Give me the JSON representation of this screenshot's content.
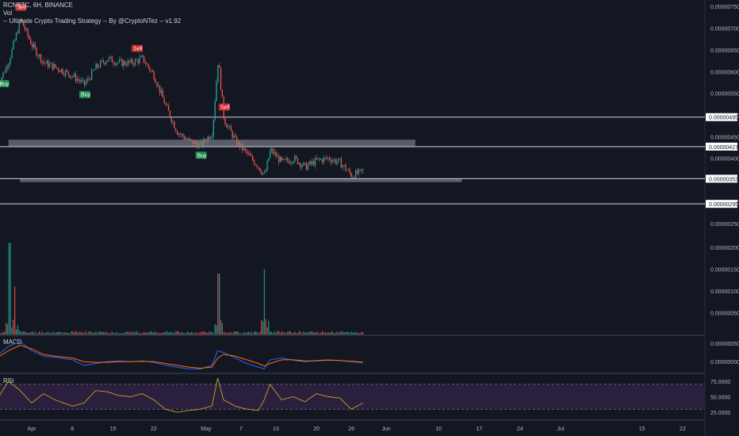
{
  "header": {
    "symbol_line": "RCNBTC, 6H, BINANCE",
    "vol_label": "Vol",
    "strategy_label": "-- Ultimate Crypto Trading Strategy -- By @CryptoNTez -- v1.92"
  },
  "colors": {
    "background": "#131722",
    "up": "#26a69a",
    "down": "#ef5350",
    "macd": "#2962ff",
    "signal": "#ff6d00",
    "rsi": "#c9a227",
    "rsi_band": "#2a1f3d",
    "buy": "#1e8e4e",
    "sell": "#c62828",
    "zone": "#9598a1"
  },
  "chart_data": [
    {
      "type": "candlestick",
      "title": "RCNBTC, 6H, BINANCE",
      "x_tick_labels": [
        "Apr",
        "8",
        "15",
        "22",
        "May",
        "7",
        "13",
        "20",
        "26",
        "Jun",
        "10",
        "17",
        "24",
        "Jul",
        "15",
        "22"
      ],
      "y_tick_labels": [
        "0.00000750",
        "0.00000700",
        "0.00000650",
        "0.00000600",
        "0.00000550",
        "0.00000500",
        "0.00000450",
        "0.00000400",
        "0.00000300",
        "0.00000250"
      ],
      "ylim": [
        2.35e-06,
        7.65e-06
      ],
      "horizontal_levels": [
        {
          "label": "0.00000495",
          "value": 4.95e-06
        },
        {
          "label": "0.00000427",
          "value": 4.27e-06
        },
        {
          "label": "0.00000353",
          "value": 3.53e-06
        },
        {
          "label": "0.00000295",
          "value": 2.95e-06
        }
      ],
      "zones": [
        {
          "low": 4.27e-06,
          "high": 4.43e-06,
          "from": "Mar 28",
          "to": "Jun 6"
        },
        {
          "low": 3.45e-06,
          "high": 3.53e-06,
          "from": "Mar 30",
          "to": "Jun 14"
        }
      ],
      "signals": [
        {
          "label": "Buy",
          "date": "Mar 27",
          "side": "buy"
        },
        {
          "label": "Sell",
          "date": "Mar 30",
          "side": "sell"
        },
        {
          "label": "Buy",
          "date": "Apr 10",
          "side": "buy"
        },
        {
          "label": "Sell",
          "date": "Apr 19",
          "side": "sell"
        },
        {
          "label": "Buy",
          "date": "Apr 30",
          "side": "buy"
        },
        {
          "label": "Sell",
          "date": "May 4",
          "side": "sell"
        }
      ],
      "close_series": {
        "dates": [
          "Mar 26",
          "Mar 28",
          "Mar 30",
          "Apr 1",
          "Apr 3",
          "Apr 5",
          "Apr 8",
          "Apr 10",
          "Apr 12",
          "Apr 14",
          "Apr 16",
          "Apr 18",
          "Apr 20",
          "Apr 22",
          "Apr 24",
          "Apr 26",
          "Apr 28",
          "Apr 30",
          "May 2",
          "May 3",
          "May 4",
          "May 6",
          "May 8",
          "May 10",
          "May 11",
          "May 12",
          "May 14",
          "May 16",
          "May 18",
          "May 20",
          "May 22",
          "May 24",
          "May 26",
          "May 28"
        ],
        "values": [
          5.65e-06,
          6.25e-06,
          7.2e-06,
          6.6e-06,
          6.2e-06,
          6.1e-06,
          5.9e-06,
          5.7e-06,
          6.1e-06,
          6.3e-06,
          6.2e-06,
          6.2e-06,
          6.3e-06,
          5.9e-06,
          5.2e-06,
          4.6e-06,
          4.4e-06,
          4.3e-06,
          4.6e-06,
          6.3e-06,
          4.9e-06,
          4.4e-06,
          4.1e-06,
          3.8e-06,
          3.6e-06,
          4.2e-06,
          3.9e-06,
          4e-06,
          3.8e-06,
          3.95e-06,
          4e-06,
          3.9e-06,
          3.6e-06,
          3.7e-06
        ]
      }
    },
    {
      "type": "bar",
      "title": "Vol",
      "y_tick_labels": [
        "0.00000200",
        "0.00000150",
        "0.00000100",
        "0.00000050"
      ],
      "ylim": [
        0,
        2.4e-06
      ],
      "spikes": [
        {
          "date": "Mar 28",
          "value": 2.1e-06
        },
        {
          "date": "Mar 29",
          "value": 1.1e-06
        },
        {
          "date": "May 3",
          "value": 1.4e-06
        },
        {
          "date": "May 11",
          "value": 1.5e-06
        }
      ]
    },
    {
      "type": "line",
      "title": "MACD",
      "y_tick_labels": [
        "0.00000050",
        "0.00000000"
      ],
      "ylim": [
        -3e-07,
        7e-07
      ],
      "series": [
        {
          "name": "MACD",
          "values": [
            1.5e-07,
            4.2e-07,
            5.5e-07,
            3e-07,
            1.5e-07,
            1.2e-07,
            5e-08,
            -1e-07,
            -5e-08,
            0.0,
            2e-08,
            0.0,
            2e-08,
            -2e-08,
            -1e-07,
            -1.5e-07,
            -2e-07,
            -2e-07,
            -1e-07,
            3e-07,
            2.5e-07,
            1e-07,
            -5e-08,
            -1.5e-07,
            -2e-07,
            5e-08,
            1e-07,
            4e-08,
            0.0,
            3e-08,
            5e-08,
            3e-08,
            0.0,
            -3e-08
          ]
        },
        {
          "name": "Signal",
          "values": [
            1e-07,
            3e-07,
            4.5e-07,
            3.5e-07,
            2e-07,
            1.5e-07,
            1e-07,
            0.0,
            -2e-08,
            -2e-08,
            0.0,
            0.0,
            1e-08,
            0.0,
            -5e-08,
            -1e-07,
            -1.5e-07,
            -1.8e-07,
            -1.5e-07,
            1e-07,
            2e-07,
            1.5e-07,
            5e-08,
            -5e-08,
            -1.2e-07,
            -5e-08,
            5e-08,
            5e-08,
            2e-08,
            2e-08,
            4e-08,
            3e-08,
            1e-08,
            -1e-08
          ]
        }
      ]
    },
    {
      "type": "line",
      "title": "RSI",
      "y_tick_labels": [
        "75.0000",
        "50.0000",
        "25.0000"
      ],
      "ylim": [
        15,
        85
      ],
      "bands": [
        30,
        70
      ],
      "series": [
        {
          "name": "RSI",
          "values": [
            45,
            75,
            60,
            40,
            55,
            45,
            35,
            40,
            60,
            58,
            52,
            50,
            55,
            45,
            30,
            25,
            28,
            30,
            35,
            80,
            45,
            35,
            30,
            28,
            45,
            70,
            45,
            50,
            42,
            55,
            50,
            48,
            30,
            40
          ]
        }
      ]
    }
  ]
}
